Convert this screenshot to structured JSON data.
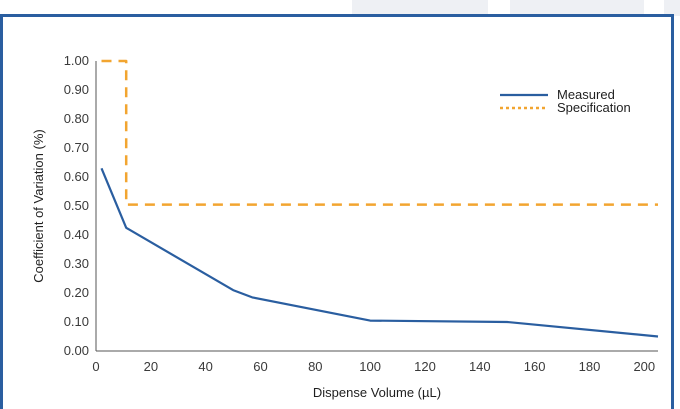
{
  "chart_data": {
    "type": "line",
    "title": "",
    "xlabel": "Dispense Volume (µL)",
    "ylabel": "Coefficient of Variation (%)",
    "xlim": [
      0,
      205
    ],
    "ylim": [
      0,
      1.0
    ],
    "x_ticks": [
      "0",
      "20",
      "40",
      "60",
      "80",
      "100",
      "120",
      "140",
      "160",
      "180",
      "200"
    ],
    "y_ticks": [
      "0.00",
      "0.10",
      "0.20",
      "0.30",
      "0.40",
      "0.50",
      "0.60",
      "0.70",
      "0.80",
      "0.90",
      "1.00"
    ],
    "grid": false,
    "legend_position": "top-right",
    "series": [
      {
        "name": "Measured",
        "color": "#2a5ea0",
        "style": "solid",
        "points": [
          [
            2,
            0.63
          ],
          [
            11,
            0.425
          ],
          [
            50,
            0.21
          ],
          [
            57,
            0.185
          ],
          [
            100,
            0.105
          ],
          [
            150,
            0.1
          ],
          [
            205,
            0.05
          ]
        ]
      },
      {
        "name": "Specification",
        "color": "#f2a530",
        "style": "dashed",
        "points": [
          [
            2,
            1.0
          ],
          [
            11,
            1.0
          ],
          [
            11,
            0.505
          ],
          [
            205,
            0.505
          ]
        ]
      }
    ]
  }
}
